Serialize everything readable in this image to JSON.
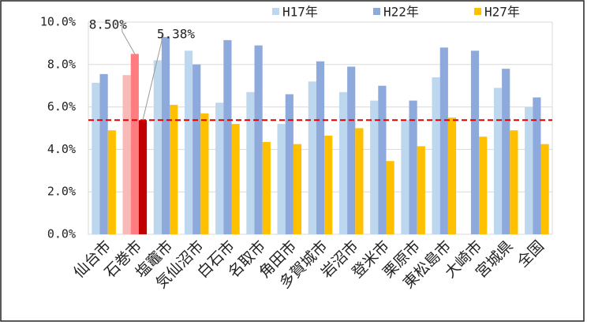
{
  "chart_data": {
    "type": "bar",
    "categories": [
      "仙台市",
      "石巻市",
      "塩竈市",
      "気仙沼市",
      "白石市",
      "名取市",
      "角田市",
      "多賀城市",
      "岩沼市",
      "登米市",
      "栗原市",
      "東松島市",
      "大崎市",
      "宮城県",
      "全国"
    ],
    "series": [
      {
        "name": "H17年",
        "color": "#bdd7ee",
        "colors": [
          "#bdd7ee",
          "#f8b9b9",
          "#bdd7ee",
          "#bdd7ee",
          "#bdd7ee",
          "#bdd7ee",
          "#bdd7ee",
          "#bdd7ee",
          "#bdd7ee",
          "#bdd7ee",
          "#bdd7ee",
          "#bdd7ee",
          "#bdd7ee",
          "#bdd7ee",
          "#bdd7ee"
        ],
        "values": [
          7.14,
          7.5,
          8.2,
          8.65,
          6.2,
          6.7,
          5.2,
          7.2,
          6.7,
          6.3,
          5.4,
          7.4,
          null,
          6.9,
          6.0
        ]
      },
      {
        "name": "H22年",
        "color": "#8ea9db",
        "colors": [
          "#8ea9db",
          "#ff7c80",
          "#8ea9db",
          "#8ea9db",
          "#8ea9db",
          "#8ea9db",
          "#8ea9db",
          "#8ea9db",
          "#8ea9db",
          "#8ea9db",
          "#8ea9db",
          "#8ea9db",
          "#8ea9db",
          "#8ea9db",
          "#8ea9db"
        ],
        "values": [
          7.55,
          8.5,
          9.3,
          8.0,
          9.15,
          8.9,
          6.6,
          8.15,
          7.9,
          7.0,
          6.3,
          8.8,
          8.65,
          7.8,
          6.45
        ],
        "value_labels": [
          null,
          "8.50%",
          null,
          null,
          null,
          null,
          null,
          null,
          null,
          null,
          null,
          null,
          null,
          null,
          null
        ]
      },
      {
        "name": "H27年",
        "color": "#ffc000",
        "colors": [
          "#ffc000",
          "#c00000",
          "#ffc000",
          "#ffc000",
          "#ffc000",
          "#ffc000",
          "#ffc000",
          "#ffc000",
          "#ffc000",
          "#ffc000",
          "#ffc000",
          "#ffc000",
          "#ffc000",
          "#ffc000",
          "#ffc000"
        ],
        "values": [
          4.9,
          5.38,
          6.1,
          5.7,
          5.2,
          4.35,
          4.25,
          4.65,
          5.0,
          3.45,
          4.15,
          5.5,
          4.6,
          4.9,
          4.25
        ],
        "value_labels": [
          null,
          "5.38%",
          null,
          null,
          null,
          null,
          null,
          null,
          null,
          null,
          null,
          null,
          null,
          null,
          null
        ]
      }
    ],
    "ylim": [
      0,
      10
    ],
    "yticks": [
      {
        "value": 0,
        "label": "0.0%"
      },
      {
        "value": 2,
        "label": "2.0%"
      },
      {
        "value": 4,
        "label": "4.0%"
      },
      {
        "value": 6,
        "label": "6.0%"
      },
      {
        "value": 8,
        "label": "8.0%"
      },
      {
        "value": 10,
        "label": "10.0%"
      }
    ],
    "grid": true,
    "reference_line": {
      "value": 5.38,
      "color": "#e00000"
    },
    "legend": "top"
  }
}
